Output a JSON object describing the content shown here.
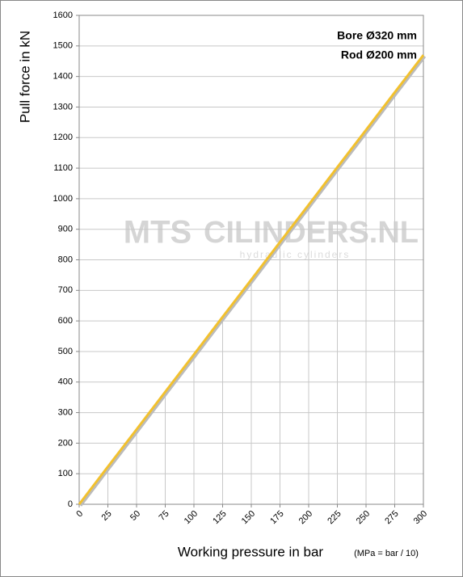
{
  "chart_data": {
    "type": "line",
    "y_label": "Pull force in kN",
    "x_label": "Working pressure in bar",
    "x_label_note": "(MPa = bar / 10)",
    "annotations": [
      "Bore Ø320 mm",
      "Rod  Ø200 mm"
    ],
    "watermark": {
      "brand": "MTS",
      "site": "CILINDERS.NL",
      "tagline": "hydraulic cylinders"
    },
    "x": [
      0,
      25,
      50,
      75,
      100,
      125,
      150,
      175,
      200,
      225,
      250,
      275,
      300
    ],
    "series": [
      {
        "name": "Pull force",
        "color": "#f2c12e",
        "values": [
          0,
          123,
          245,
          368,
          490,
          613,
          735,
          858,
          980,
          1103,
          1225,
          1348,
          1470
        ]
      }
    ],
    "xlim": [
      0,
      300
    ],
    "xticks": [
      0,
      25,
      50,
      75,
      100,
      125,
      150,
      175,
      200,
      225,
      250,
      275,
      300
    ],
    "ylim": [
      0,
      1600
    ],
    "yticks": [
      0,
      100,
      200,
      300,
      400,
      500,
      600,
      700,
      800,
      900,
      1000,
      1100,
      1200,
      1300,
      1400,
      1500,
      1600
    ],
    "grid": true
  }
}
